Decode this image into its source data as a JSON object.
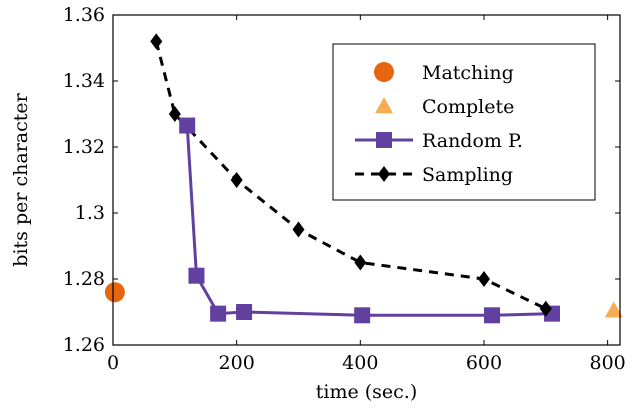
{
  "chart_data": {
    "type": "line",
    "title": "",
    "xlabel": "time (sec.)",
    "ylabel": "bits per character",
    "xlim": [
      0,
      820
    ],
    "ylim": [
      1.26,
      1.36
    ],
    "xticks": [
      0,
      200,
      400,
      600,
      800
    ],
    "xtick_labels": [
      "0",
      "200",
      "400",
      "600",
      "800"
    ],
    "yticks": [
      1.26,
      1.28,
      1.3,
      1.32,
      1.34,
      1.36
    ],
    "ytick_labels": [
      "1.26",
      "1.28",
      "1.3",
      "1.32",
      "1.34",
      "1.36"
    ],
    "grid": false,
    "legend_position": "top-right",
    "series": [
      {
        "name": "Matching",
        "marker": "circle",
        "line": "none",
        "color": "#e8650f",
        "x": [
          3
        ],
        "y": [
          1.276
        ]
      },
      {
        "name": "Complete",
        "marker": "triangle",
        "line": "none",
        "color": "#f6ad56",
        "x": [
          810
        ],
        "y": [
          1.2705
        ]
      },
      {
        "name": "Random P.",
        "marker": "square",
        "line": "solid",
        "color": "#6140a0",
        "x": [
          120,
          135,
          170,
          212,
          403,
          613,
          710
        ],
        "y": [
          1.3265,
          1.281,
          1.2695,
          1.27,
          1.269,
          1.269,
          1.2695
        ]
      },
      {
        "name": "Sampling",
        "marker": "diamond",
        "line": "dashed",
        "color": "#000000",
        "x": [
          70,
          100,
          200,
          300,
          400,
          600,
          700
        ],
        "y": [
          1.352,
          1.33,
          1.31,
          1.295,
          1.285,
          1.28,
          1.271
        ]
      }
    ]
  }
}
